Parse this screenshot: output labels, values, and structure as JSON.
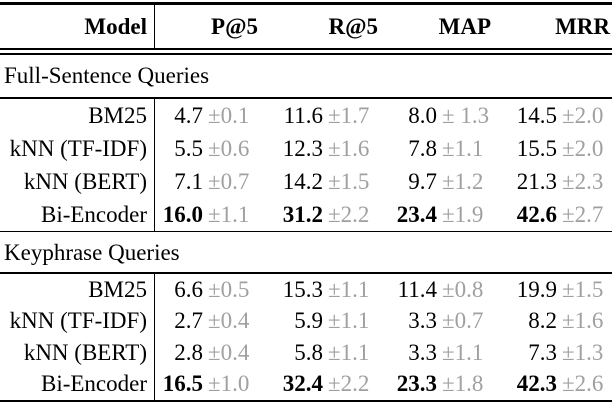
{
  "page": {
    "background_color": "#ffffff",
    "text_color": "#000000",
    "stddev_color": "#a0a0a0"
  },
  "table": {
    "columns": [
      "Model",
      "P@5",
      "R@5",
      "MAP",
      "MRR"
    ],
    "sections": [
      {
        "title": "Full-Sentence Queries",
        "rows": [
          {
            "model": "BM25",
            "p5": {
              "v": "4.7",
              "e": "±0.1"
            },
            "r5": {
              "v": "11.6",
              "e": "±1.7"
            },
            "map": {
              "v": "8.0",
              "e": "± 1.3"
            },
            "mrr": {
              "v": "14.5",
              "e": "±2.0"
            }
          },
          {
            "model": "kNN (TF-IDF)",
            "p5": {
              "v": "5.5",
              "e": "±0.6"
            },
            "r5": {
              "v": "12.3",
              "e": "±1.6"
            },
            "map": {
              "v": "7.8",
              "e": "±1.1"
            },
            "mrr": {
              "v": "15.5",
              "e": "±2.0"
            }
          },
          {
            "model": "kNN (BERT)",
            "p5": {
              "v": "7.1",
              "e": "±0.7"
            },
            "r5": {
              "v": "14.2",
              "e": "±1.5"
            },
            "map": {
              "v": "9.7",
              "e": "±1.2"
            },
            "mrr": {
              "v": "21.3",
              "e": "±2.3"
            }
          },
          {
            "model": "Bi-Encoder",
            "p5": {
              "v": "16.0",
              "e": "±1.1"
            },
            "r5": {
              "v": "31.2",
              "e": "±2.2"
            },
            "map": {
              "v": "23.4",
              "e": "±1.9"
            },
            "mrr": {
              "v": "42.6",
              "e": "±2.7"
            }
          }
        ]
      },
      {
        "title": "Keyphrase Queries",
        "rows": [
          {
            "model": "BM25",
            "p5": {
              "v": "6.6",
              "e": "±0.5"
            },
            "r5": {
              "v": "15.3",
              "e": "±1.1"
            },
            "map": {
              "v": "11.4",
              "e": "±0.8"
            },
            "mrr": {
              "v": "19.9",
              "e": "±1.5"
            }
          },
          {
            "model": "kNN (TF-IDF)",
            "p5": {
              "v": "2.7",
              "e": "±0.4"
            },
            "r5": {
              "v": "5.9",
              "e": "±1.1"
            },
            "map": {
              "v": "3.3",
              "e": "±0.7"
            },
            "mrr": {
              "v": "8.2",
              "e": "±1.6"
            }
          },
          {
            "model": "kNN (BERT)",
            "p5": {
              "v": "2.8",
              "e": "±0.4"
            },
            "r5": {
              "v": "5.8",
              "e": "±1.1"
            },
            "map": {
              "v": "3.3",
              "e": "±1.1"
            },
            "mrr": {
              "v": "7.3",
              "e": "±1.3"
            }
          },
          {
            "model": "Bi-Encoder",
            "p5": {
              "v": "16.5",
              "e": "±1.0"
            },
            "r5": {
              "v": "32.4",
              "e": "±2.2"
            },
            "map": {
              "v": "23.3",
              "e": "±1.8"
            },
            "mrr": {
              "v": "42.3",
              "e": "±2.6"
            }
          }
        ]
      }
    ]
  }
}
